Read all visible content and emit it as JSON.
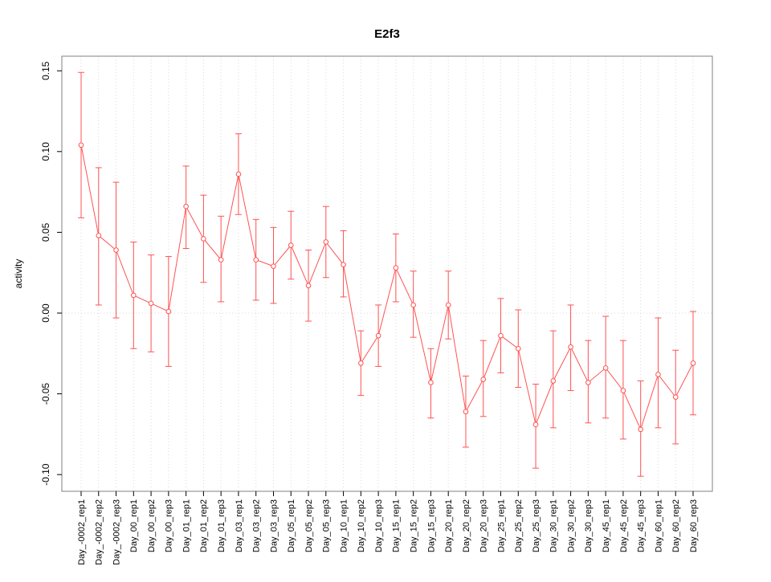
{
  "chart_data": {
    "type": "line",
    "title": "E2f3",
    "xlabel": "",
    "ylabel": "activity",
    "ylim": [
      -0.11,
      0.16
    ],
    "yticks": [
      0.15,
      0.1,
      0.05,
      0.0,
      -0.05,
      -0.1
    ],
    "grid": {
      "vertical": "dotted line at every category",
      "horizontal": "dotted line at y=0 only"
    },
    "legend": "none",
    "point_style": "open-circle",
    "error_bars": true,
    "colors": {
      "series": "#ff5252",
      "grid": "#d9d9d9",
      "axis": "#000000",
      "border": "#808080",
      "background": "#ffffff",
      "point_fill": "#ffffff"
    },
    "categories": [
      "Day_-0002_rep1",
      "Day_-0002_rep2",
      "Day_-0002_rep3",
      "Day_00_rep1",
      "Day_00_rep2",
      "Day_00_rep3",
      "Day_01_rep1",
      "Day_01_rep2",
      "Day_01_rep3",
      "Day_03_rep1",
      "Day_03_rep2",
      "Day_03_rep3",
      "Day_05_rep1",
      "Day_05_rep2",
      "Day_05_rep3",
      "Day_10_rep1",
      "Day_10_rep2",
      "Day_10_rep3",
      "Day_15_rep1",
      "Day_15_rep2",
      "Day_15_rep3",
      "Day_20_rep1",
      "Day_20_rep2",
      "Day_20_rep3",
      "Day_25_rep1",
      "Day_25_rep2",
      "Day_25_rep3",
      "Day_30_rep1",
      "Day_30_rep2",
      "Day_30_rep3",
      "Day_45_rep1",
      "Day_45_rep2",
      "Day_45_rep3",
      "Day_60_rep1",
      "Day_60_rep2",
      "Day_60_rep3"
    ],
    "series": [
      {
        "name": "E2f3 activity",
        "values": [
          0.104,
          0.048,
          0.039,
          0.011,
          0.006,
          0.001,
          0.066,
          0.046,
          0.033,
          0.086,
          0.033,
          0.029,
          0.042,
          0.017,
          0.044,
          0.03,
          -0.031,
          -0.014,
          0.028,
          0.005,
          -0.043,
          0.005,
          -0.061,
          -0.041,
          -0.014,
          -0.022,
          -0.069,
          -0.042,
          -0.021,
          -0.043,
          -0.034,
          -0.048,
          -0.072,
          -0.038,
          -0.052,
          -0.031
        ],
        "lower": [
          0.059,
          0.005,
          -0.003,
          -0.022,
          -0.024,
          -0.033,
          0.04,
          0.019,
          0.007,
          0.061,
          0.008,
          0.006,
          0.021,
          -0.005,
          0.022,
          0.01,
          -0.051,
          -0.033,
          0.007,
          -0.015,
          -0.065,
          -0.016,
          -0.083,
          -0.064,
          -0.037,
          -0.046,
          -0.096,
          -0.071,
          -0.048,
          -0.068,
          -0.065,
          -0.078,
          -0.101,
          -0.071,
          -0.081,
          -0.063
        ],
        "upper": [
          0.149,
          0.09,
          0.081,
          0.044,
          0.036,
          0.035,
          0.091,
          0.073,
          0.06,
          0.111,
          0.058,
          0.053,
          0.063,
          0.039,
          0.066,
          0.051,
          -0.011,
          0.005,
          0.049,
          0.026,
          -0.022,
          0.026,
          -0.039,
          -0.017,
          0.009,
          0.002,
          -0.044,
          -0.011,
          0.005,
          -0.017,
          -0.002,
          -0.017,
          -0.042,
          -0.003,
          -0.023,
          0.001
        ]
      }
    ]
  }
}
